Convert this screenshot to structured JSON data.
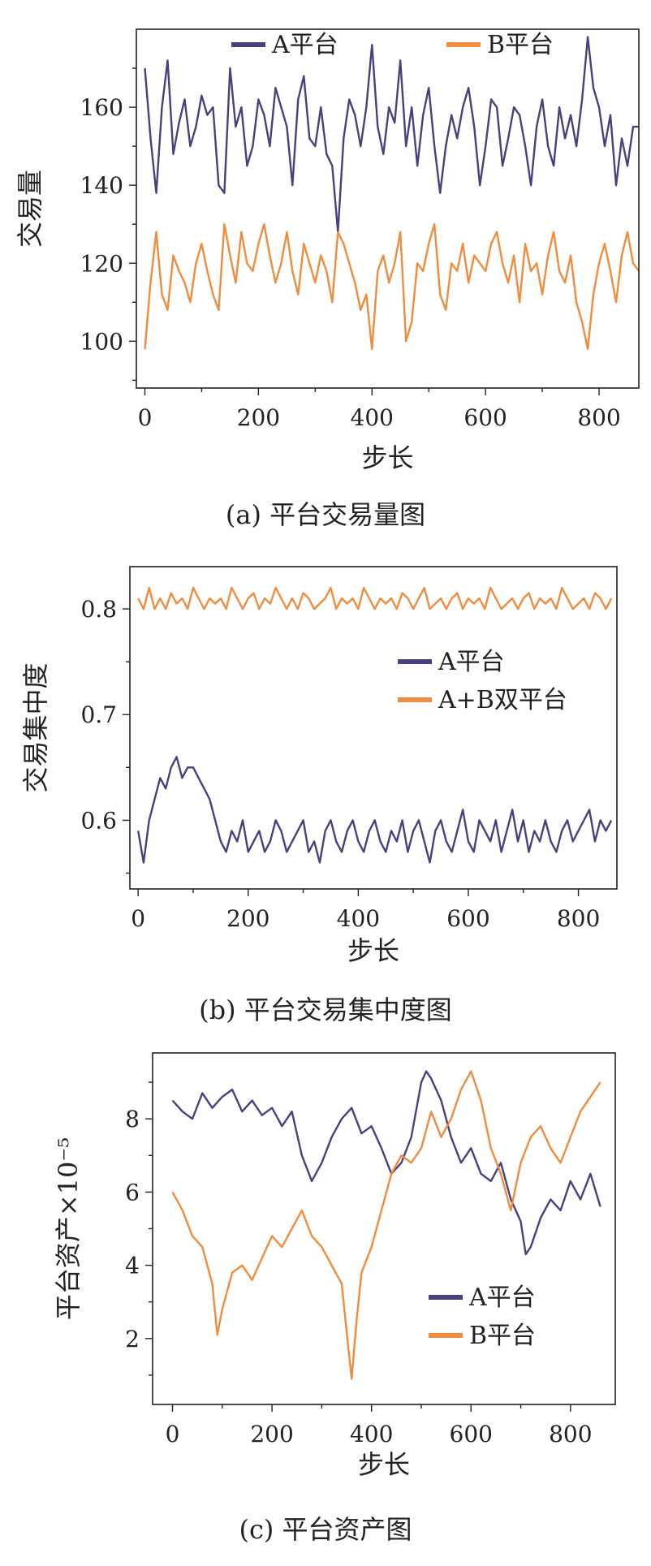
{
  "chart_data": [
    {
      "type": "line",
      "caption": "(a)  平台交易量图",
      "xlabel": "步长",
      "ylabel": "交易量",
      "xlim": [
        -15,
        870
      ],
      "ylim": [
        88,
        180
      ],
      "xticks": [
        0,
        200,
        400,
        600,
        800
      ],
      "yticks": [
        100,
        120,
        140,
        160
      ],
      "legend_position": "top",
      "series": [
        {
          "name": "A平台",
          "color": "#4b3f7e",
          "x": [
            0,
            10,
            20,
            30,
            40,
            50,
            60,
            70,
            80,
            90,
            100,
            110,
            120,
            130,
            140,
            150,
            160,
            170,
            180,
            190,
            200,
            210,
            220,
            230,
            240,
            250,
            260,
            270,
            280,
            290,
            300,
            310,
            320,
            330,
            340,
            350,
            360,
            370,
            380,
            390,
            400,
            410,
            420,
            430,
            440,
            450,
            460,
            470,
            480,
            490,
            500,
            510,
            520,
            530,
            540,
            550,
            560,
            570,
            580,
            590,
            600,
            610,
            620,
            630,
            640,
            650,
            660,
            670,
            680,
            690,
            700,
            710,
            720,
            730,
            740,
            750,
            760,
            770,
            780,
            790,
            800,
            810,
            820,
            830,
            840,
            850,
            860,
            870
          ],
          "values": [
            170,
            152,
            138,
            160,
            172,
            148,
            156,
            162,
            150,
            155,
            163,
            158,
            160,
            140,
            138,
            170,
            155,
            160,
            145,
            150,
            162,
            158,
            150,
            165,
            160,
            155,
            140,
            162,
            168,
            152,
            150,
            160,
            148,
            145,
            128,
            152,
            162,
            158,
            150,
            160,
            176,
            155,
            148,
            160,
            156,
            172,
            150,
            160,
            145,
            158,
            165,
            150,
            138,
            150,
            158,
            152,
            160,
            165,
            155,
            140,
            150,
            162,
            160,
            145,
            152,
            160,
            158,
            150,
            140,
            155,
            162,
            150,
            145,
            160,
            152,
            158,
            150,
            162,
            178,
            165,
            160,
            150,
            158,
            140,
            152,
            145,
            155,
            155
          ]
        },
        {
          "name": "B平台",
          "color": "#ef8c3f",
          "x": [
            0,
            10,
            20,
            30,
            40,
            50,
            60,
            70,
            80,
            90,
            100,
            110,
            120,
            130,
            140,
            150,
            160,
            170,
            180,
            190,
            200,
            210,
            220,
            230,
            240,
            250,
            260,
            270,
            280,
            290,
            300,
            310,
            320,
            330,
            340,
            350,
            360,
            370,
            380,
            390,
            400,
            410,
            420,
            430,
            440,
            450,
            460,
            470,
            480,
            490,
            500,
            510,
            520,
            530,
            540,
            550,
            560,
            570,
            580,
            590,
            600,
            610,
            620,
            630,
            640,
            650,
            660,
            670,
            680,
            690,
            700,
            710,
            720,
            730,
            740,
            750,
            760,
            770,
            780,
            790,
            800,
            810,
            820,
            830,
            840,
            850,
            860,
            870
          ],
          "values": [
            98,
            115,
            128,
            112,
            108,
            122,
            118,
            115,
            110,
            120,
            125,
            118,
            112,
            108,
            130,
            122,
            115,
            128,
            120,
            118,
            125,
            130,
            122,
            115,
            120,
            128,
            118,
            112,
            125,
            120,
            115,
            122,
            118,
            110,
            128,
            125,
            120,
            115,
            108,
            112,
            98,
            118,
            122,
            115,
            120,
            128,
            100,
            105,
            120,
            118,
            125,
            130,
            112,
            108,
            120,
            118,
            125,
            115,
            122,
            120,
            118,
            125,
            128,
            120,
            115,
            122,
            110,
            125,
            118,
            120,
            112,
            122,
            128,
            118,
            115,
            122,
            110,
            105,
            98,
            112,
            120,
            125,
            118,
            110,
            122,
            128,
            120,
            118
          ]
        }
      ]
    },
    {
      "type": "line",
      "caption": "(b)  平台交易集中度图",
      "xlabel": "步长",
      "ylabel": "交易集中度",
      "xlim": [
        -15,
        870
      ],
      "ylim": [
        0.535,
        0.84
      ],
      "xticks": [
        0,
        200,
        400,
        600,
        800
      ],
      "yticks": [
        0.6,
        0.7,
        0.8
      ],
      "legend_position": "center-right",
      "series": [
        {
          "name": "A平台",
          "color": "#4b3f7e",
          "x": [
            0,
            10,
            20,
            30,
            40,
            50,
            60,
            70,
            80,
            90,
            100,
            110,
            120,
            130,
            140,
            150,
            160,
            170,
            180,
            190,
            200,
            210,
            220,
            230,
            240,
            250,
            260,
            270,
            280,
            290,
            300,
            310,
            320,
            330,
            340,
            350,
            360,
            370,
            380,
            390,
            400,
            410,
            420,
            430,
            440,
            450,
            460,
            470,
            480,
            490,
            500,
            510,
            520,
            530,
            540,
            550,
            560,
            570,
            580,
            590,
            600,
            610,
            620,
            630,
            640,
            650,
            660,
            670,
            680,
            690,
            700,
            710,
            720,
            730,
            740,
            750,
            760,
            770,
            780,
            790,
            800,
            810,
            820,
            830,
            840,
            850,
            860
          ],
          "values": [
            0.59,
            0.56,
            0.6,
            0.62,
            0.64,
            0.63,
            0.65,
            0.66,
            0.64,
            0.65,
            0.65,
            0.64,
            0.63,
            0.62,
            0.6,
            0.58,
            0.57,
            0.59,
            0.58,
            0.6,
            0.57,
            0.58,
            0.59,
            0.57,
            0.58,
            0.6,
            0.59,
            0.57,
            0.58,
            0.59,
            0.6,
            0.57,
            0.58,
            0.56,
            0.59,
            0.6,
            0.58,
            0.57,
            0.59,
            0.6,
            0.58,
            0.57,
            0.59,
            0.6,
            0.58,
            0.57,
            0.59,
            0.58,
            0.6,
            0.57,
            0.59,
            0.6,
            0.58,
            0.56,
            0.59,
            0.6,
            0.58,
            0.57,
            0.59,
            0.61,
            0.58,
            0.57,
            0.6,
            0.59,
            0.58,
            0.6,
            0.57,
            0.59,
            0.61,
            0.58,
            0.6,
            0.57,
            0.59,
            0.58,
            0.6,
            0.58,
            0.57,
            0.59,
            0.6,
            0.58,
            0.59,
            0.6,
            0.61,
            0.58,
            0.6,
            0.59,
            0.6
          ]
        },
        {
          "name": "A+B双平台",
          "color": "#ef8c3f",
          "x": [
            0,
            10,
            20,
            30,
            40,
            50,
            60,
            70,
            80,
            90,
            100,
            110,
            120,
            130,
            140,
            150,
            160,
            170,
            180,
            190,
            200,
            210,
            220,
            230,
            240,
            250,
            260,
            270,
            280,
            290,
            300,
            310,
            320,
            330,
            340,
            350,
            360,
            370,
            380,
            390,
            400,
            410,
            420,
            430,
            440,
            450,
            460,
            470,
            480,
            490,
            500,
            510,
            520,
            530,
            540,
            550,
            560,
            570,
            580,
            590,
            600,
            610,
            620,
            630,
            640,
            650,
            660,
            670,
            680,
            690,
            700,
            710,
            720,
            730,
            740,
            750,
            760,
            770,
            780,
            790,
            800,
            810,
            820,
            830,
            840,
            850,
            860
          ],
          "values": [
            0.81,
            0.8,
            0.82,
            0.8,
            0.81,
            0.8,
            0.815,
            0.805,
            0.81,
            0.8,
            0.82,
            0.81,
            0.8,
            0.81,
            0.805,
            0.81,
            0.8,
            0.82,
            0.81,
            0.8,
            0.81,
            0.815,
            0.8,
            0.81,
            0.805,
            0.82,
            0.81,
            0.8,
            0.81,
            0.8,
            0.815,
            0.81,
            0.8,
            0.805,
            0.81,
            0.82,
            0.8,
            0.81,
            0.805,
            0.81,
            0.8,
            0.82,
            0.81,
            0.8,
            0.81,
            0.805,
            0.81,
            0.8,
            0.815,
            0.81,
            0.8,
            0.81,
            0.82,
            0.8,
            0.805,
            0.81,
            0.8,
            0.81,
            0.815,
            0.8,
            0.81,
            0.805,
            0.81,
            0.8,
            0.82,
            0.81,
            0.8,
            0.805,
            0.81,
            0.8,
            0.81,
            0.815,
            0.8,
            0.81,
            0.805,
            0.81,
            0.8,
            0.82,
            0.81,
            0.8,
            0.805,
            0.81,
            0.8,
            0.815,
            0.81,
            0.8,
            0.81
          ]
        }
      ]
    },
    {
      "type": "line",
      "caption": "(c)  平台资产图",
      "xlabel": "步长",
      "ylabel": "平台资产×10⁻⁵",
      "xlim": [
        -40,
        890
      ],
      "ylim": [
        0.2,
        9.8
      ],
      "xticks": [
        0,
        200,
        400,
        600,
        800
      ],
      "yticks": [
        2,
        4,
        6,
        8
      ],
      "legend_position": "lower-right",
      "series": [
        {
          "name": "A平台",
          "color": "#4b3f7e",
          "x": [
            0,
            20,
            40,
            60,
            80,
            100,
            120,
            140,
            160,
            180,
            200,
            220,
            240,
            260,
            280,
            300,
            320,
            340,
            360,
            380,
            400,
            420,
            440,
            460,
            480,
            500,
            510,
            520,
            540,
            560,
            580,
            600,
            620,
            640,
            660,
            680,
            700,
            710,
            720,
            740,
            760,
            780,
            800,
            820,
            840,
            860
          ],
          "values": [
            8.5,
            8.2,
            8.0,
            8.7,
            8.3,
            8.6,
            8.8,
            8.2,
            8.5,
            8.1,
            8.3,
            7.8,
            8.2,
            7.0,
            6.3,
            6.8,
            7.5,
            8.0,
            8.3,
            7.6,
            7.8,
            7.2,
            6.5,
            6.8,
            7.5,
            9.0,
            9.3,
            9.1,
            8.5,
            7.5,
            6.8,
            7.2,
            6.5,
            6.3,
            6.8,
            5.8,
            5.2,
            4.3,
            4.5,
            5.3,
            5.8,
            5.5,
            6.3,
            5.8,
            6.5,
            5.6
          ]
        },
        {
          "name": "B平台",
          "color": "#ef8c3f",
          "x": [
            0,
            20,
            40,
            60,
            80,
            90,
            100,
            120,
            140,
            160,
            180,
            200,
            220,
            240,
            260,
            280,
            300,
            320,
            340,
            350,
            360,
            370,
            380,
            400,
            420,
            440,
            460,
            480,
            500,
            520,
            540,
            560,
            580,
            600,
            620,
            640,
            660,
            680,
            700,
            720,
            740,
            760,
            780,
            800,
            820,
            840,
            860
          ],
          "values": [
            6.0,
            5.5,
            4.8,
            4.5,
            3.5,
            2.1,
            2.8,
            3.8,
            4.0,
            3.6,
            4.2,
            4.8,
            4.5,
            5.0,
            5.5,
            4.8,
            4.5,
            4.0,
            3.5,
            2.2,
            0.9,
            2.5,
            3.8,
            4.5,
            5.5,
            6.5,
            7.0,
            6.8,
            7.2,
            8.2,
            7.5,
            8.0,
            8.8,
            9.3,
            8.5,
            7.2,
            6.5,
            5.5,
            6.8,
            7.5,
            7.8,
            7.2,
            6.8,
            7.5,
            8.2,
            8.6,
            9.0
          ]
        }
      ]
    }
  ]
}
